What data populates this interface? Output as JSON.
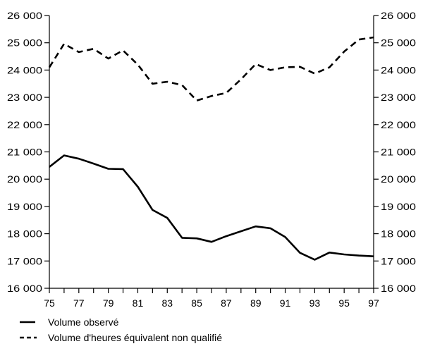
{
  "chart_data": {
    "type": "line",
    "title": "",
    "xlabel": "",
    "ylabel": "",
    "x": [
      75,
      76,
      77,
      78,
      79,
      80,
      81,
      82,
      83,
      84,
      85,
      86,
      87,
      88,
      89,
      90,
      91,
      92,
      93,
      94,
      95,
      96,
      97
    ],
    "x_tick_labels": [
      "75",
      "77",
      "79",
      "81",
      "83",
      "85",
      "87",
      "89",
      "91",
      "93",
      "95",
      "97"
    ],
    "y_tick_labels": [
      "16 000",
      "17 000",
      "18 000",
      "19 000",
      "20 000",
      "21 000",
      "22 000",
      "23 000",
      "24 000",
      "25 000",
      "26 000"
    ],
    "y_ticks": [
      16000,
      17000,
      18000,
      19000,
      20000,
      21000,
      22000,
      23000,
      24000,
      25000,
      26000
    ],
    "xlim": [
      75,
      97
    ],
    "ylim": [
      16000,
      26000
    ],
    "axes": "left and right y-axes with identical scale",
    "grid": false,
    "legend_position": "bottom-left",
    "series": [
      {
        "name": "Volume observé",
        "style": "solid",
        "color": "#000000",
        "values": [
          20450,
          20870,
          20750,
          20570,
          20380,
          20370,
          19720,
          18870,
          18580,
          17850,
          17830,
          17700,
          17910,
          18090,
          18270,
          18200,
          17880,
          17300,
          17050,
          17310,
          17240,
          17200,
          17170
        ]
      },
      {
        "name": "Volume d'heures équivalent non qualifié",
        "style": "dashed",
        "color": "#000000",
        "values": [
          24100,
          24960,
          24660,
          24780,
          24420,
          24720,
          24200,
          23500,
          23570,
          23450,
          22880,
          23050,
          23160,
          23660,
          24220,
          24000,
          24100,
          24120,
          23870,
          24100,
          24680,
          25120,
          25200
        ]
      }
    ]
  }
}
